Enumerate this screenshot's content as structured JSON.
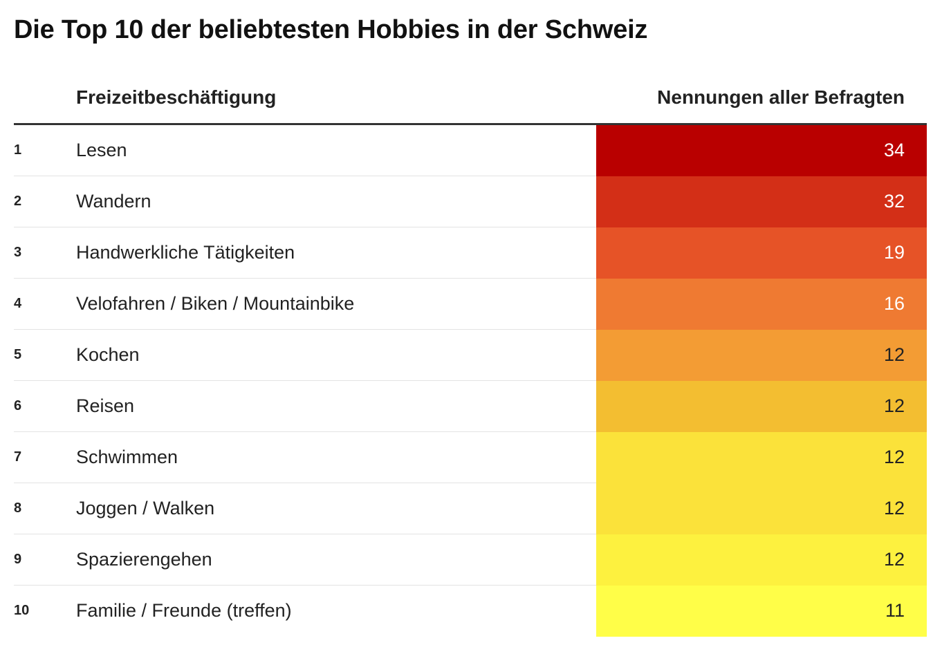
{
  "title": "Die Top 10 der beliebtesten Hobbies in der Schweiz",
  "columns": {
    "hobby": "Freizeitbeschäftigung",
    "count": "Nennungen aller Befragten"
  },
  "chart_data": {
    "type": "table",
    "title": "Die Top 10 der beliebtesten Hobbies in der Schweiz",
    "headers": [
      "",
      "Freizeitbeschäftigung",
      "Nennungen aller Befragten"
    ],
    "rows": [
      {
        "rank": "1",
        "hobby": "Lesen",
        "value": "34",
        "color": "#b90000",
        "text_color": "#ffffff"
      },
      {
        "rank": "2",
        "hobby": "Wandern",
        "value": "32",
        "color": "#d32f17",
        "text_color": "#ffffff"
      },
      {
        "rank": "3",
        "hobby": "Handwerkliche Tätigkeiten",
        "value": "19",
        "color": "#e65327",
        "text_color": "#ffffff"
      },
      {
        "rank": "4",
        "hobby": "Velofahren / Biken / Mountainbike",
        "value": "16",
        "color": "#ef7a32",
        "text_color": "#ffffff"
      },
      {
        "rank": "5",
        "hobby": "Kochen",
        "value": "12",
        "color": "#f39c34",
        "text_color": "#222222"
      },
      {
        "rank": "6",
        "hobby": "Reisen",
        "value": "12",
        "color": "#f3be31",
        "text_color": "#222222"
      },
      {
        "rank": "7",
        "hobby": "Schwimmen",
        "value": "12",
        "color": "#fbe23a",
        "text_color": "#222222"
      },
      {
        "rank": "8",
        "hobby": "Joggen / Walken",
        "value": "12",
        "color": "#fbe23a",
        "text_color": "#222222"
      },
      {
        "rank": "9",
        "hobby": "Spazierengehen",
        "value": "12",
        "color": "#fdf13f",
        "text_color": "#222222"
      },
      {
        "rank": "10",
        "hobby": "Familie / Freunde (treffen)",
        "value": "11",
        "color": "#fffe48",
        "text_color": "#222222"
      }
    ]
  }
}
